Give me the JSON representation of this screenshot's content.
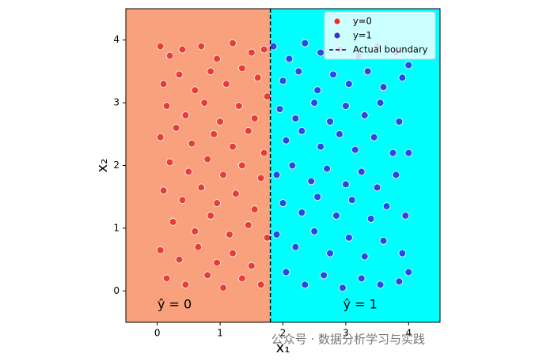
{
  "chart_data": {
    "type": "scatter",
    "xlabel": "x₁",
    "ylabel": "x₂",
    "xlim": [
      -0.5,
      4.5
    ],
    "ylim": [
      -0.5,
      4.5
    ],
    "xticks": [
      0,
      1,
      2,
      3,
      4
    ],
    "yticks": [
      0,
      1,
      2,
      3,
      4
    ],
    "legend": "upper right",
    "boundary": {
      "name": "Actual boundary",
      "x": 1.8,
      "color": "#000000"
    },
    "regions": [
      {
        "label": "ŷ = 0",
        "color": "#f9a07c"
      },
      {
        "label": "ŷ = 1",
        "color": "#00ffff"
      }
    ],
    "series": [
      {
        "name": "y=0",
        "color": "#e8312c",
        "x": [
          0.05,
          0.2,
          0.4,
          0.7,
          0.95,
          1.2,
          1.5,
          1.7,
          0.1,
          0.35,
          0.6,
          0.85,
          1.1,
          1.35,
          1.6,
          0.15,
          0.45,
          0.75,
          1.0,
          1.3,
          1.55,
          1.75,
          0.05,
          0.3,
          0.55,
          0.9,
          1.2,
          1.45,
          1.7,
          0.2,
          0.5,
          0.8,
          1.05,
          1.35,
          1.65,
          0.1,
          0.4,
          0.7,
          0.95,
          1.25,
          1.55,
          0.25,
          0.6,
          0.85,
          1.15,
          1.45,
          1.75,
          0.05,
          0.35,
          0.65,
          0.95,
          1.2,
          1.5,
          0.15,
          0.45,
          0.8,
          1.05,
          1.35,
          1.65
        ],
        "y": [
          3.9,
          3.75,
          3.85,
          3.9,
          3.7,
          3.95,
          3.8,
          3.85,
          3.3,
          3.45,
          3.2,
          3.5,
          3.3,
          3.55,
          3.4,
          2.95,
          2.8,
          3.0,
          2.7,
          2.95,
          2.75,
          3.1,
          2.45,
          2.6,
          2.35,
          2.5,
          2.3,
          2.55,
          2.2,
          2.05,
          1.9,
          2.1,
          1.85,
          2.0,
          1.8,
          1.6,
          1.45,
          1.65,
          1.4,
          1.55,
          1.3,
          1.1,
          0.95,
          1.2,
          0.9,
          1.05,
          0.85,
          0.65,
          0.5,
          0.7,
          0.45,
          0.6,
          0.4,
          0.2,
          0.1,
          0.25,
          0.05,
          0.2,
          0.1
        ]
      },
      {
        "name": "y=1",
        "color": "#2f34e4",
        "x": [
          1.85,
          2.1,
          2.35,
          2.6,
          2.9,
          3.2,
          3.5,
          3.8,
          4.0,
          2.0,
          2.25,
          2.55,
          2.8,
          3.05,
          3.35,
          3.6,
          3.9,
          1.95,
          2.2,
          2.5,
          2.75,
          3.0,
          3.3,
          3.55,
          3.85,
          2.05,
          2.3,
          2.6,
          2.9,
          3.15,
          3.45,
          3.75,
          4.0,
          1.9,
          2.15,
          2.45,
          2.7,
          3.0,
          3.25,
          3.5,
          3.8,
          2.0,
          2.3,
          2.55,
          2.85,
          3.1,
          3.4,
          3.65,
          3.95,
          1.9,
          2.2,
          2.5,
          2.75,
          3.05,
          3.3,
          3.6,
          3.9,
          2.05,
          2.35,
          2.65,
          2.95,
          3.25,
          3.55,
          3.85,
          4.0
        ],
        "y": [
          3.9,
          3.7,
          3.95,
          3.8,
          3.85,
          3.75,
          3.9,
          3.8,
          3.6,
          3.35,
          3.5,
          3.2,
          3.45,
          3.3,
          3.5,
          3.25,
          3.4,
          2.9,
          2.75,
          3.0,
          2.7,
          2.95,
          2.8,
          3.0,
          2.7,
          2.4,
          2.55,
          2.3,
          2.5,
          2.25,
          2.45,
          2.2,
          2.2,
          1.85,
          2.0,
          1.75,
          1.95,
          1.7,
          1.9,
          1.65,
          1.85,
          1.4,
          1.25,
          1.5,
          1.2,
          1.45,
          1.15,
          1.35,
          1.2,
          0.9,
          0.7,
          0.95,
          0.6,
          0.85,
          0.55,
          0.8,
          0.6,
          0.3,
          0.1,
          0.25,
          0.05,
          0.2,
          0.1,
          0.15,
          0.3
        ]
      }
    ]
  },
  "watermark": "公众号 · 数据分析学习与实践"
}
